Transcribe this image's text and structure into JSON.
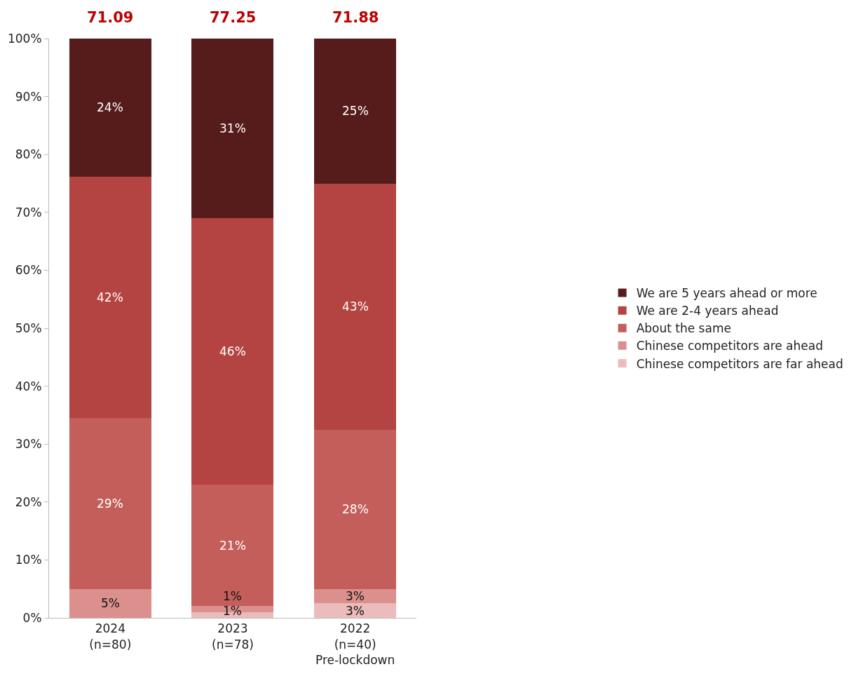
{
  "chart_data": {
    "type": "bar",
    "stacked": true,
    "categories": [
      "2024\n(n=80)",
      "2023\n(n=78)",
      "2022\n(n=40)\nPre-lockdown"
    ],
    "series": [
      {
        "name": "Chinese competitors are far ahead",
        "color": "#ebbcbb",
        "values": [
          0,
          1,
          2.5
        ],
        "value_labels": [
          null,
          "1%",
          "3%"
        ]
      },
      {
        "name": "Chinese competitors are ahead",
        "color": "#db908d",
        "values": [
          5,
          1,
          2.5
        ],
        "value_labels": [
          "5%",
          "1%",
          "3%"
        ]
      },
      {
        "name": "About the same",
        "color": "#c45e5b",
        "values": [
          29.5,
          21,
          27.5
        ],
        "value_labels": [
          "29%",
          "21%",
          "28%"
        ]
      },
      {
        "name": "We are 2-4 years ahead",
        "color": "#b44441",
        "values": [
          41.7,
          46,
          42.5
        ],
        "value_labels": [
          "42%",
          "46%",
          "43%"
        ]
      },
      {
        "name": "We are 5 years ahead or more",
        "color": "#561c1c",
        "values": [
          23.8,
          31,
          25
        ],
        "value_labels": [
          "24%",
          "31%",
          "25%"
        ]
      }
    ],
    "ylim": [
      0,
      100
    ],
    "yticks": [
      {
        "value": 0,
        "label": "0%"
      },
      {
        "value": 10,
        "label": "10%"
      },
      {
        "value": 20,
        "label": "20%"
      },
      {
        "value": 30,
        "label": "30%"
      },
      {
        "value": 40,
        "label": "40%"
      },
      {
        "value": 50,
        "label": "50%"
      },
      {
        "value": 60,
        "label": "60%"
      },
      {
        "value": 70,
        "label": "70%"
      },
      {
        "value": 80,
        "label": "80%"
      },
      {
        "value": 90,
        "label": "90%"
      },
      {
        "value": 100,
        "label": "100%"
      }
    ],
    "annotations": [
      "71.09",
      "77.25",
      "71.88"
    ],
    "grid": false,
    "legend": "right"
  }
}
